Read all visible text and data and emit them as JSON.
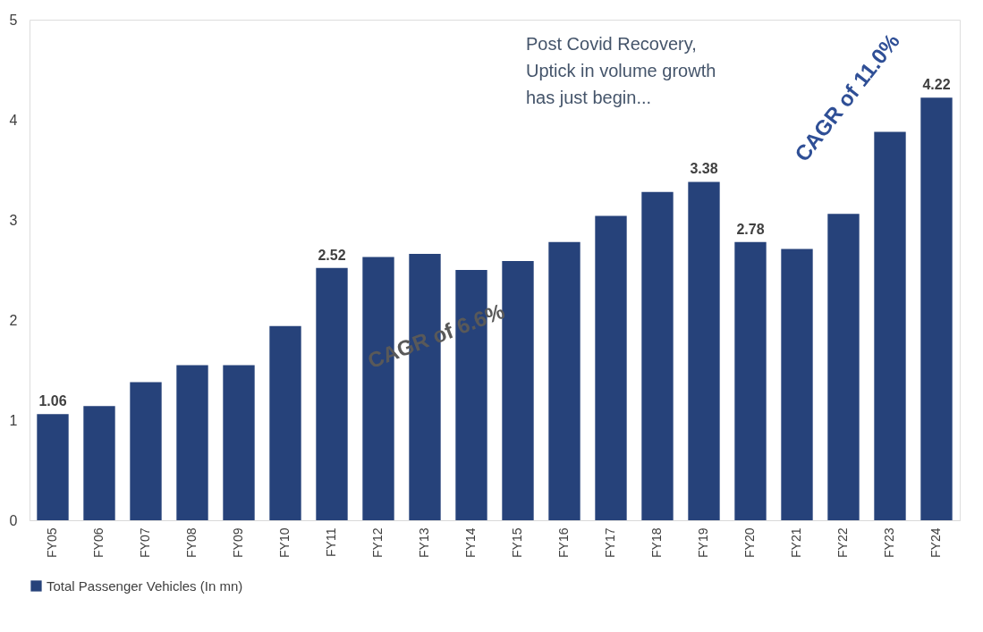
{
  "chart_data": {
    "type": "bar",
    "categories": [
      "FY05",
      "FY06",
      "FY07",
      "FY08",
      "FY09",
      "FY10",
      "FY11",
      "FY12",
      "FY13",
      "FY14",
      "FY15",
      "FY16",
      "FY17",
      "FY18",
      "FY19",
      "FY20",
      "FY21",
      "FY22",
      "FY23",
      "FY24"
    ],
    "series": [
      {
        "name": "Total Passenger Vehicles (In mn)",
        "color": "#26427a",
        "values": [
          1.06,
          1.14,
          1.38,
          1.55,
          1.55,
          1.94,
          2.52,
          2.63,
          2.66,
          2.5,
          2.59,
          2.78,
          3.04,
          3.28,
          3.38,
          2.78,
          2.71,
          3.06,
          3.88,
          4.22
        ],
        "value_labels": [
          "1.06",
          null,
          null,
          null,
          null,
          null,
          "2.52",
          null,
          null,
          null,
          null,
          null,
          null,
          null,
          "3.38",
          "2.78",
          null,
          null,
          null,
          "4.22"
        ]
      }
    ],
    "ylim": [
      0,
      5
    ],
    "yticks": [
      0,
      1,
      2,
      3,
      4,
      5
    ],
    "grid": false,
    "legend": "bottom",
    "annotations": [
      "Post Covid Recovery,\nUptick in volume growth\nhas just begin...",
      "CAGR of 6.6%",
      "CAGR of 11.0%"
    ]
  }
}
